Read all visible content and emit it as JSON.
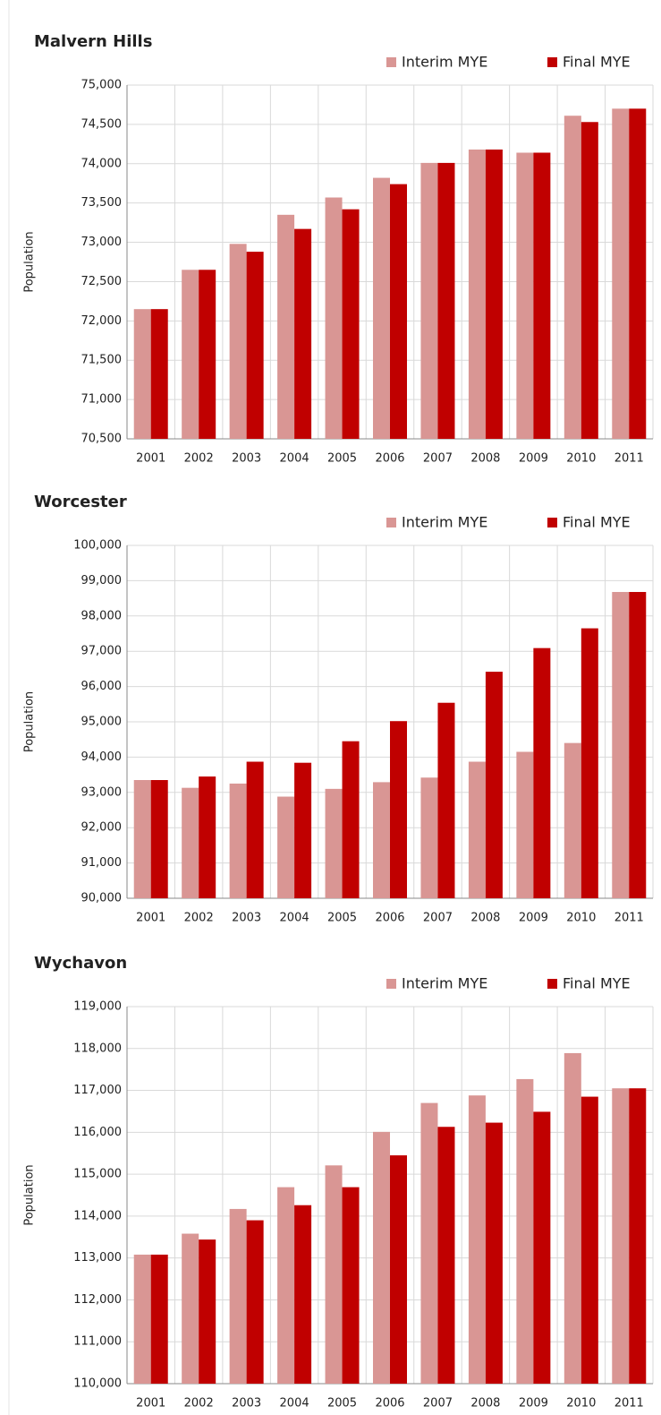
{
  "chart_data": [
    {
      "type": "bar",
      "title": "Malvern Hills",
      "y_label": "Population",
      "categories": [
        "2001",
        "2002",
        "2003",
        "2004",
        "2005",
        "2006",
        "2007",
        "2008",
        "2009",
        "2010",
        "2011"
      ],
      "series": [
        {
          "name": "Interim MYE",
          "color": "#d99694",
          "values": [
            72150,
            72650,
            72980,
            73350,
            73570,
            73820,
            74010,
            74180,
            74140,
            74610,
            74700
          ]
        },
        {
          "name": "Final MYE",
          "color": "#c00000",
          "values": [
            72150,
            72650,
            72880,
            73170,
            73420,
            73740,
            74010,
            74180,
            74140,
            74530,
            74700
          ]
        }
      ],
      "ylim": [
        70500,
        75000
      ],
      "yticks": [
        {
          "value": 70500,
          "label": "70,500"
        },
        {
          "value": 71000,
          "label": "71,000"
        },
        {
          "value": 71500,
          "label": "71,500"
        },
        {
          "value": 72000,
          "label": "72,000"
        },
        {
          "value": 72500,
          "label": "72,500"
        },
        {
          "value": 73000,
          "label": "73,000"
        },
        {
          "value": 73500,
          "label": "73,500"
        },
        {
          "value": 74000,
          "label": "74,000"
        },
        {
          "value": 74500,
          "label": "74,500"
        },
        {
          "value": 75000,
          "label": "75,000"
        }
      ],
      "grid": true,
      "legend": "top-right"
    },
    {
      "type": "bar",
      "title": "Worcester",
      "y_label": "Population",
      "categories": [
        "2001",
        "2002",
        "2003",
        "2004",
        "2005",
        "2006",
        "2007",
        "2008",
        "2009",
        "2010",
        "2011"
      ],
      "series": [
        {
          "name": "Interim MYE",
          "color": "#d99694",
          "values": [
            93350,
            93130,
            93250,
            92880,
            93100,
            93290,
            93420,
            93870,
            94150,
            94400,
            98680
          ]
        },
        {
          "name": "Final MYE",
          "color": "#c00000",
          "values": [
            93350,
            93450,
            93870,
            93840,
            94450,
            95020,
            95540,
            96420,
            97090,
            97650,
            98680
          ]
        }
      ],
      "ylim": [
        90000,
        100000
      ],
      "yticks": [
        {
          "value": 90000,
          "label": "90,000"
        },
        {
          "value": 91000,
          "label": "91,000"
        },
        {
          "value": 92000,
          "label": "92,000"
        },
        {
          "value": 93000,
          "label": "93,000"
        },
        {
          "value": 94000,
          "label": "94,000"
        },
        {
          "value": 95000,
          "label": "95,000"
        },
        {
          "value": 96000,
          "label": "96,000"
        },
        {
          "value": 97000,
          "label": "97,000"
        },
        {
          "value": 98000,
          "label": "98,000"
        },
        {
          "value": 99000,
          "label": "99,000"
        },
        {
          "value": 100000,
          "label": "100,000"
        }
      ],
      "grid": true,
      "legend": "top-right"
    },
    {
      "type": "bar",
      "title": "Wychavon",
      "y_label": "Population",
      "categories": [
        "2001",
        "2002",
        "2003",
        "2004",
        "2005",
        "2006",
        "2007",
        "2008",
        "2009",
        "2010",
        "2011"
      ],
      "series": [
        {
          "name": "Interim MYE",
          "color": "#d99694",
          "values": [
            113080,
            113580,
            114170,
            114690,
            115210,
            116010,
            116700,
            116880,
            117270,
            117890,
            117050
          ]
        },
        {
          "name": "Final MYE",
          "color": "#c00000",
          "values": [
            113080,
            113440,
            113900,
            114260,
            114690,
            115450,
            116130,
            116230,
            116490,
            116850,
            117050
          ]
        }
      ],
      "ylim": [
        110000,
        119000
      ],
      "yticks": [
        {
          "value": 110000,
          "label": "110,000"
        },
        {
          "value": 111000,
          "label": "111,000"
        },
        {
          "value": 112000,
          "label": "112,000"
        },
        {
          "value": 113000,
          "label": "113,000"
        },
        {
          "value": 114000,
          "label": "114,000"
        },
        {
          "value": 115000,
          "label": "115,000"
        },
        {
          "value": 116000,
          "label": "116,000"
        },
        {
          "value": 117000,
          "label": "117,000"
        },
        {
          "value": 118000,
          "label": "118,000"
        },
        {
          "value": 119000,
          "label": "119,000"
        }
      ],
      "grid": true,
      "legend": "top-right"
    }
  ]
}
